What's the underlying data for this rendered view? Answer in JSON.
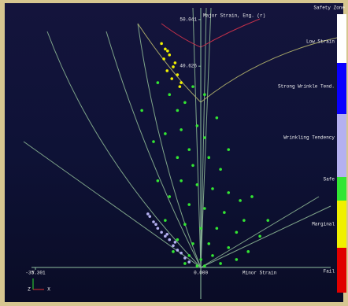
{
  "chart_data": {
    "type": "scatter",
    "y_label": "Major Strain, Eng. (r)",
    "x_label": "Minor Strain",
    "legend_title": "Safety Zone",
    "triad": [
      "Y",
      "Z",
      "X"
    ],
    "xlim": [
      -35.301,
      27.7
    ],
    "ylim": [
      0,
      52.4
    ],
    "xticks": [
      -35.301,
      {
        "value": 0,
        "label": "0.000"
      }
    ],
    "yticks": [
      40.626,
      50.041
    ],
    "series": [
      {
        "name": "Low Strain",
        "color": "#ffffff",
        "x": [],
        "values": []
      },
      {
        "name": "Strong Wrinkle Tend.",
        "color": "#0a00ff",
        "x": [],
        "values": []
      },
      {
        "name": "Wrinkling Tendency",
        "color": "#b4b0f0",
        "x": [
          -10.9,
          -10.1,
          -9.2,
          -8.4,
          -7.6,
          -6.7,
          -5.9,
          -5.0,
          -4.2,
          -3.4,
          -9.6,
          -7.2,
          -2.5,
          -11.3,
          -5.5
        ],
        "values": [
          10.3,
          9.2,
          7.9,
          7.1,
          6.3,
          5.6,
          4.4,
          3.5,
          2.9,
          1.9,
          8.7,
          6.7,
          1.1,
          10.8,
          5.1
        ]
      },
      {
        "name": "Safe",
        "color": "#33e633",
        "x": [
          -9.2,
          -6.7,
          -5.0,
          -3.4,
          -1.7,
          -4.2,
          -0.8,
          -7.6,
          -2.5,
          0.8,
          -5.0,
          -1.7,
          1.7,
          4.2,
          -4.2,
          -0.8,
          2.5,
          5.9,
          -6.7,
          -2.5,
          0.8,
          5.0,
          8.4,
          10.9,
          -7.6,
          -3.4,
          0,
          3.4,
          7.6,
          12.6,
          -5.0,
          -1.7,
          1.7,
          5.9,
          10.1,
          -2.5,
          0,
          2.5,
          -0.8,
          0.8,
          -10.1,
          -12.6,
          0.8,
          3.4,
          5.9,
          -9.2,
          14.3,
          9.2,
          -5.9,
          -3.4,
          4.2,
          7.6
        ],
        "values": [
          37.3,
          34.9,
          31.7,
          33.3,
          36.5,
          27.8,
          28.6,
          27.0,
          23.8,
          26.2,
          22.2,
          20.6,
          22.2,
          19.8,
          17.5,
          16.7,
          15.9,
          15.1,
          14.3,
          12.7,
          11.9,
          11.1,
          13.5,
          14.3,
          9.5,
          8.7,
          7.9,
          7.9,
          7.1,
          6.3,
          5.6,
          4.8,
          4.8,
          4.0,
          3.2,
          2.4,
          1.6,
          2.4,
          0.3,
          0.3,
          25.4,
          31.7,
          34.9,
          30.2,
          23.8,
          17.5,
          9.5,
          9.5,
          3.2,
          0.8,
          0.8,
          1.6
        ]
      },
      {
        "name": "Marginal",
        "color": "#f0f000",
        "x": [
          -8.4,
          -7.6,
          -6.7,
          -7.9,
          -5.9,
          -7.2,
          -5.0,
          -6.2,
          -4.2,
          -5.5,
          -7.1,
          -4.5
        ],
        "values": [
          45.2,
          44.1,
          42.9,
          42.1,
          40.5,
          39.7,
          38.9,
          38.1,
          37.3,
          41.3,
          43.7,
          36.5
        ]
      },
      {
        "name": "Fail",
        "color": "#e00000",
        "x": [],
        "values": []
      }
    ]
  }
}
